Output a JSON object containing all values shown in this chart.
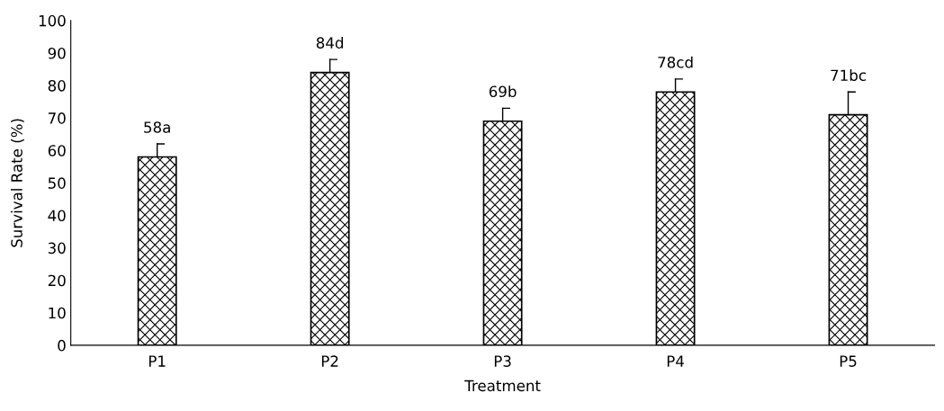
{
  "chart_data": {
    "type": "bar",
    "xlabel": "Treatment",
    "ylabel": "Survival Rate (%)",
    "categories": [
      "P1",
      "P2",
      "P3",
      "P4",
      "P5"
    ],
    "values": [
      58,
      84,
      69,
      78,
      71
    ],
    "errors": [
      [
        58,
        62
      ],
      [
        84,
        88
      ],
      [
        69,
        73
      ],
      [
        78,
        82
      ],
      [
        71,
        78
      ]
    ],
    "value_labels": [
      "58a",
      "84d",
      "69b",
      "78cd",
      "71bc"
    ],
    "color": "#000000",
    "ylim": [
      0,
      100
    ],
    "yticks": [
      0,
      10,
      20,
      30,
      40,
      50,
      60,
      70,
      80,
      90,
      100
    ],
    "grid": false
  }
}
